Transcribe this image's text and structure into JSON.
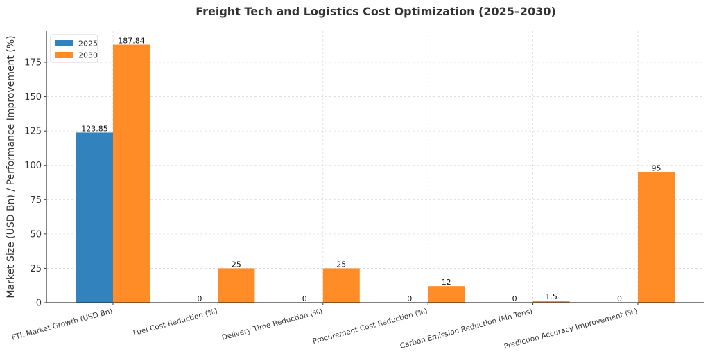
{
  "chart_data": {
    "type": "bar",
    "title": "Freight Tech and Logistics Cost Optimization (2025–2030)",
    "xlabel": "",
    "ylabel": "Market Size (USD Bn) / Performance Improvement (%)",
    "categories": [
      "FTL Market Growth (USD Bn)",
      "Fuel Cost Reduction (%)",
      "Delivery Time Reduction (%)",
      "Procurement Cost Reduction (%)",
      "Carbon Emission Reduction (Mn Tons)",
      "Prediction Accuracy Improvement (%)"
    ],
    "series": [
      {
        "name": "2025",
        "color": "#3282bd",
        "values": [
          123.85,
          0,
          0,
          0,
          0,
          0
        ],
        "labels": [
          "123.85",
          "0",
          "0",
          "0",
          "0",
          "0"
        ]
      },
      {
        "name": "2030",
        "color": "#ff8c27",
        "values": [
          187.84,
          25,
          25,
          12,
          1.5,
          95
        ],
        "labels": [
          "187.84",
          "25",
          "25",
          "12",
          "1.5",
          "95"
        ]
      }
    ],
    "ylim": [
      0,
      197.7
    ],
    "yticks": [
      0,
      25,
      50,
      75,
      100,
      125,
      150,
      175
    ],
    "grid": true,
    "grid_style": "dashed",
    "legend": {
      "position": "top-left",
      "entries": [
        "2025",
        "2030"
      ]
    },
    "xtick_rotation_deg": -15
  }
}
